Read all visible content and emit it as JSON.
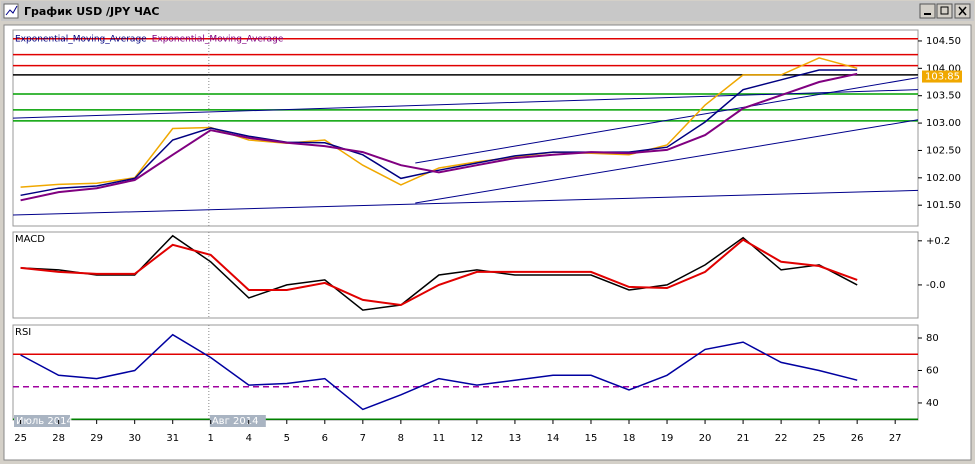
{
  "window": {
    "title": "График USD /JPY ЧАС"
  },
  "chart_data": [
    {
      "type": "line",
      "xlim": [
        -0.2,
        23.6
      ],
      "ylim": [
        101.12,
        104.7
      ],
      "yticks": [
        {
          "value": 101.5,
          "label": "101.50"
        },
        {
          "value": 102,
          "label": "102.00"
        },
        {
          "value": 102.5,
          "label": "102.50"
        },
        {
          "value": 103,
          "label": "103.00"
        },
        {
          "value": 103.5,
          "label": "103.50"
        },
        {
          "value": 104,
          "label": "104.00"
        },
        {
          "value": 104.5,
          "label": "104.50"
        }
      ],
      "x": [
        0,
        1,
        2,
        3,
        4,
        5,
        6,
        7,
        8,
        9,
        10,
        11,
        12,
        13,
        14,
        15,
        16,
        17,
        18,
        19,
        20,
        21,
        22
      ],
      "series": [
        {
          "color": "#f0a800",
          "values": [
            101.83,
            101.88,
            101.9,
            102.0,
            102.9,
            102.92,
            102.69,
            102.63,
            102.69,
            102.23,
            101.87,
            102.18,
            102.29,
            102.38,
            102.47,
            102.45,
            102.42,
            102.6,
            103.33,
            103.88,
            103.88,
            104.19,
            104.0
          ]
        },
        {
          "name": "Exponential_Moving_Average",
          "color": "#000080",
          "values": [
            101.68,
            101.81,
            101.85,
            101.99,
            102.69,
            102.91,
            102.76,
            102.65,
            102.64,
            102.42,
            101.99,
            102.14,
            102.27,
            102.4,
            102.47,
            102.47,
            102.47,
            102.56,
            103.02,
            103.61,
            103.79,
            103.97,
            103.97
          ]
        },
        {
          "name": "Exponential_Moving_Average",
          "color": "#800080",
          "values": [
            101.59,
            101.74,
            101.81,
            101.96,
            102.42,
            102.87,
            102.73,
            102.64,
            102.58,
            102.47,
            102.23,
            102.1,
            102.23,
            102.36,
            102.42,
            102.47,
            102.45,
            102.51,
            102.78,
            103.27,
            103.51,
            103.75,
            103.9
          ]
        }
      ],
      "levels": [
        {
          "value": 104.54,
          "color": "#e00000"
        },
        {
          "value": 104.25,
          "color": "#e00000"
        },
        {
          "value": 104.05,
          "color": "#e00000"
        },
        {
          "value": 103.88,
          "color": "#000000"
        },
        {
          "value": 103.53,
          "color": "#00a000"
        },
        {
          "value": 103.24,
          "color": "#00a000"
        },
        {
          "value": 103.04,
          "color": "#00a000"
        }
      ],
      "trendline_color": "#00008b",
      "trendlines": [
        {
          "x": [
            -0.2,
            23.6
          ],
          "values": [
            103.09,
            103.61
          ]
        },
        {
          "x": [
            -0.2,
            23.6
          ],
          "values": [
            101.32,
            101.77
          ]
        },
        {
          "x": [
            10.38,
            23.6
          ],
          "values": [
            101.54,
            103.06
          ]
        },
        {
          "x": [
            10.38,
            23.6
          ],
          "values": [
            102.27,
            103.83
          ]
        }
      ],
      "last_price": 103.85
    },
    {
      "type": "line",
      "title": "MACD",
      "xlim": [
        -0.2,
        23.6
      ],
      "ylim": [
        -0.15,
        0.24
      ],
      "yticks": [
        {
          "value": 0.2,
          "label": "+0.2"
        },
        {
          "value": 0,
          "label": "-0.0"
        }
      ],
      "x": [
        0,
        1,
        2,
        3,
        4,
        5,
        6,
        7,
        8,
        9,
        10,
        11,
        12,
        13,
        14,
        15,
        16,
        17,
        18,
        19,
        20,
        21,
        22
      ],
      "series": [
        {
          "color": "#000000",
          "values": [
            0.077,
            0.068,
            0.045,
            0.045,
            0.223,
            0.105,
            -0.059,
            0,
            0.023,
            -0.114,
            -0.091,
            0.045,
            0.068,
            0.045,
            0.045,
            0.045,
            -0.023,
            0,
            0.091,
            0.214,
            0.068,
            0.091,
            0
          ]
        },
        {
          "color": "#e00000",
          "values": [
            0.077,
            0.059,
            0.05,
            0.05,
            0.182,
            0.136,
            -0.023,
            -0.023,
            0.009,
            -0.068,
            -0.091,
            0,
            0.059,
            0.059,
            0.059,
            0.059,
            -0.009,
            -0.014,
            0.059,
            0.205,
            0.105,
            0.086,
            0.023
          ]
        }
      ]
    },
    {
      "type": "line",
      "title": "RSI",
      "xlim": [
        -0.2,
        23.6
      ],
      "ylim": [
        29.5,
        88
      ],
      "yticks": [
        40,
        60,
        80
      ],
      "x": [
        0,
        1,
        2,
        3,
        4,
        5,
        6,
        7,
        8,
        9,
        10,
        11,
        12,
        13,
        14,
        15,
        16,
        17,
        18,
        19,
        20,
        21,
        22
      ],
      "series": [
        {
          "color": "#0000a0",
          "values": [
            69.5,
            57,
            55,
            60,
            82,
            68,
            51,
            52,
            55,
            36,
            45,
            55,
            51,
            54,
            57,
            57,
            48,
            57,
            73,
            77.5,
            65,
            60,
            54
          ]
        }
      ],
      "levels": [
        {
          "value": 70,
          "color": "#e00000"
        },
        {
          "value": 50,
          "color": "#a000a0",
          "dash": true
        },
        {
          "value": 30,
          "color": "#008000"
        }
      ],
      "xticks": [
        {
          "value": 0,
          "label": "25"
        },
        {
          "value": 1,
          "label": "28"
        },
        {
          "value": 2,
          "label": "29"
        },
        {
          "value": 3,
          "label": "30"
        },
        {
          "value": 4,
          "label": "31"
        },
        {
          "value": 5,
          "label": "1"
        },
        {
          "value": 6,
          "label": "4"
        },
        {
          "value": 7,
          "label": "5"
        },
        {
          "value": 8,
          "label": "6"
        },
        {
          "value": 9,
          "label": "7"
        },
        {
          "value": 10,
          "label": "8"
        },
        {
          "value": 11,
          "label": "11"
        },
        {
          "value": 12,
          "label": "12"
        },
        {
          "value": 13,
          "label": "13"
        },
        {
          "value": 14,
          "label": "14"
        },
        {
          "value": 15,
          "label": "15"
        },
        {
          "value": 16,
          "label": "18"
        },
        {
          "value": 17,
          "label": "19"
        },
        {
          "value": 18,
          "label": "20"
        },
        {
          "value": 19,
          "label": "21"
        },
        {
          "value": 20,
          "label": "22"
        },
        {
          "value": 21,
          "label": "25"
        },
        {
          "value": 22,
          "label": "26"
        },
        {
          "value": 23,
          "label": "27"
        }
      ],
      "month_ticks": [
        {
          "value": -0.2,
          "label": "Июль 2014"
        },
        {
          "value": 4.95,
          "label": "Авг 2014"
        }
      ]
    }
  ]
}
